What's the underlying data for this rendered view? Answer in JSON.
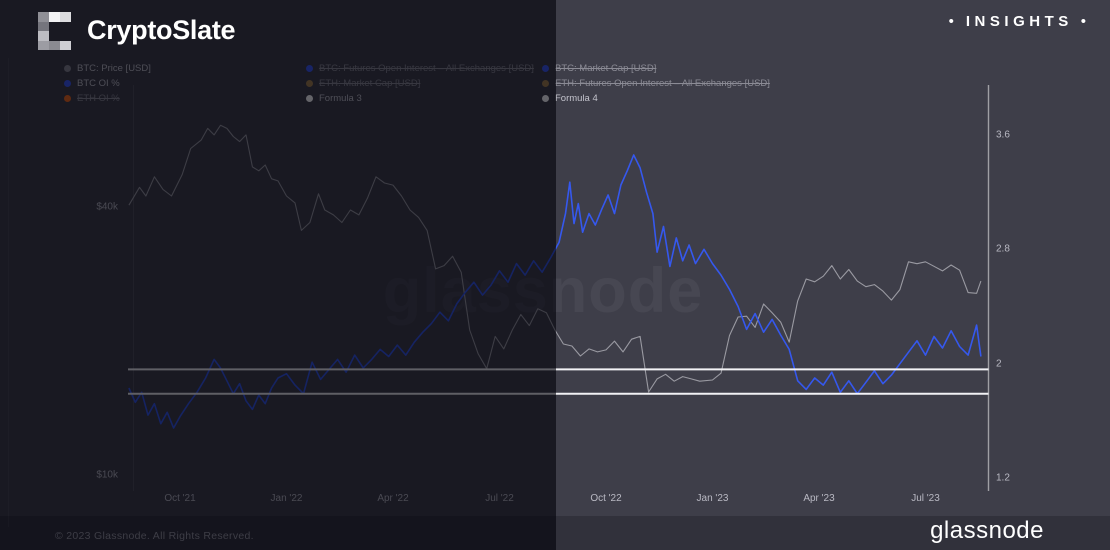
{
  "header": {
    "brand": "CryptoSlate",
    "insights_label": "INSIGHTS",
    "bullet": "•",
    "logo_pixels": [
      {
        "col": 0,
        "row": 0,
        "color": "#8f8f96"
      },
      {
        "col": 1,
        "row": 0,
        "color": "#f2f2f4"
      },
      {
        "col": 2,
        "row": 0,
        "color": "#dcdcdf"
      },
      {
        "col": 0,
        "row": 1,
        "color": "#75757d"
      },
      {
        "col": 0,
        "row": 2,
        "color": "#bcbcc2"
      },
      {
        "col": 0,
        "row": 3,
        "color": "#9c9ca3"
      },
      {
        "col": 1,
        "row": 3,
        "color": "#8a8a91"
      },
      {
        "col": 2,
        "row": 3,
        "color": "#cfcfd4"
      }
    ]
  },
  "watermark_text": "glassnode",
  "footer": {
    "copyright": "© 2023 Glassnode. All Rights Reserved.",
    "brand_wordmark": "glassnode"
  },
  "colors": {
    "background": "#3e3e49",
    "bottom_strip": "#31313b",
    "overlay": "rgba(2,2,10,0.61)",
    "btc_price_line": "#9a9aa2",
    "btc_oi_line": "#3558ee",
    "eth_oi": "#f26a1e",
    "gold": "#a8854f",
    "formula_line": "#f2f2f5",
    "axis_line": "rgba(255,255,255,0.5)",
    "axis_text": "#b9b9c3"
  },
  "chart_data": {
    "type": "line",
    "legend_columns": [
      {
        "items": [
          {
            "label": "BTC: Price [USD]",
            "color": "#8a8a93",
            "struck": false
          },
          {
            "label": "BTC OI %",
            "color": "#3b5af7",
            "struck": false
          },
          {
            "label": "ETH OI %",
            "color": "#f26a1e",
            "struck": true
          }
        ]
      },
      {
        "items": [
          {
            "label": "BTC: Futures Open Interest – All Exchanges [USD]",
            "color": "#3b5af7",
            "struck": true
          },
          {
            "label": "ETH: Market Cap [USD]",
            "color": "#a8854f",
            "struck": true
          },
          {
            "label": "Formula 3",
            "color": "#ffffff",
            "struck": false
          }
        ]
      },
      {
        "items": [
          {
            "label": "BTC: Market Cap [USD]",
            "color": "#3b5af7",
            "struck": true
          },
          {
            "label": "ETH: Futures Open Interest – All Exchanges [USD]",
            "color": "#a8854f",
            "struck": true
          },
          {
            "label": "Formula 4",
            "color": "#ffffff",
            "struck": false
          }
        ]
      }
    ],
    "x_ticks": [
      {
        "label": "Oct '21",
        "year": 2021.75
      },
      {
        "label": "Jan '22",
        "year": 2022.0
      },
      {
        "label": "Apr '22",
        "year": 2022.25
      },
      {
        "label": "Jul '22",
        "year": 2022.5
      },
      {
        "label": "Oct '22",
        "year": 2022.75
      },
      {
        "label": "Jan '23",
        "year": 2023.0
      },
      {
        "label": "Apr '23",
        "year": 2023.25
      },
      {
        "label": "Jul '23",
        "year": 2023.5
      }
    ],
    "y_left_axis": {
      "scale": "log",
      "unit": "USD",
      "ticks": [
        {
          "label": "$40k",
          "value": 40000
        },
        {
          "label": "$10k",
          "value": 10000
        }
      ]
    },
    "y_right_axis": {
      "min": 1.2,
      "max": 3.6,
      "ticks": [
        {
          "label": "3.6",
          "value": 3.6
        },
        {
          "label": "2.8",
          "value": 2.8
        },
        {
          "label": "2",
          "value": 2.0
        },
        {
          "label": "1.2",
          "value": 1.2
        }
      ]
    },
    "series": [
      {
        "name": "BTC: Price [USD]",
        "axis": "left",
        "color_key": "btc_price_line",
        "width": 1.1,
        "points": [
          [
            2021.63,
            41000
          ],
          [
            2021.655,
            45000
          ],
          [
            2021.67,
            43000
          ],
          [
            2021.69,
            47500
          ],
          [
            2021.71,
            44500
          ],
          [
            2021.73,
            43000
          ],
          [
            2021.755,
            48000
          ],
          [
            2021.775,
            55000
          ],
          [
            2021.8,
            57500
          ],
          [
            2021.815,
            61000
          ],
          [
            2021.83,
            59000
          ],
          [
            2021.845,
            62000
          ],
          [
            2021.86,
            61000
          ],
          [
            2021.875,
            58500
          ],
          [
            2021.89,
            57000
          ],
          [
            2021.905,
            59000
          ],
          [
            2021.92,
            50000
          ],
          [
            2021.935,
            49000
          ],
          [
            2021.95,
            50500
          ],
          [
            2021.965,
            47000
          ],
          [
            2021.98,
            46500
          ],
          [
            2022.0,
            43000
          ],
          [
            2022.02,
            41500
          ],
          [
            2022.035,
            36000
          ],
          [
            2022.055,
            37500
          ],
          [
            2022.075,
            43500
          ],
          [
            2022.09,
            40000
          ],
          [
            2022.11,
            39000
          ],
          [
            2022.13,
            37500
          ],
          [
            2022.15,
            40000
          ],
          [
            2022.17,
            39000
          ],
          [
            2022.19,
            42500
          ],
          [
            2022.21,
            47500
          ],
          [
            2022.23,
            46000
          ],
          [
            2022.25,
            45500
          ],
          [
            2022.27,
            43000
          ],
          [
            2022.29,
            40000
          ],
          [
            2022.31,
            38500
          ],
          [
            2022.33,
            36000
          ],
          [
            2022.35,
            29500
          ],
          [
            2022.37,
            30000
          ],
          [
            2022.39,
            31500
          ],
          [
            2022.41,
            29000
          ],
          [
            2022.43,
            21500
          ],
          [
            2022.45,
            19000
          ],
          [
            2022.47,
            17600
          ],
          [
            2022.49,
            20800
          ],
          [
            2022.51,
            19500
          ],
          [
            2022.53,
            21500
          ],
          [
            2022.55,
            23300
          ],
          [
            2022.57,
            22000
          ],
          [
            2022.59,
            24000
          ],
          [
            2022.61,
            23500
          ],
          [
            2022.63,
            21500
          ],
          [
            2022.65,
            20000
          ],
          [
            2022.67,
            19800
          ],
          [
            2022.69,
            18800
          ],
          [
            2022.71,
            19500
          ],
          [
            2022.73,
            19200
          ],
          [
            2022.75,
            19400
          ],
          [
            2022.77,
            20300
          ],
          [
            2022.79,
            19200
          ],
          [
            2022.81,
            20500
          ],
          [
            2022.83,
            20800
          ],
          [
            2022.85,
            15600
          ],
          [
            2022.87,
            16700
          ],
          [
            2022.89,
            17100
          ],
          [
            2022.91,
            16500
          ],
          [
            2022.93,
            16900
          ],
          [
            2022.95,
            16700
          ],
          [
            2022.97,
            16500
          ],
          [
            2023.0,
            16600
          ],
          [
            2023.02,
            17200
          ],
          [
            2023.04,
            20900
          ],
          [
            2023.06,
            23000
          ],
          [
            2023.08,
            23100
          ],
          [
            2023.1,
            21800
          ],
          [
            2023.12,
            24600
          ],
          [
            2023.14,
            23500
          ],
          [
            2023.16,
            22400
          ],
          [
            2023.18,
            20200
          ],
          [
            2023.2,
            25000
          ],
          [
            2023.22,
            28000
          ],
          [
            2023.24,
            27600
          ],
          [
            2023.26,
            28400
          ],
          [
            2023.28,
            30000
          ],
          [
            2023.3,
            28000
          ],
          [
            2023.32,
            29400
          ],
          [
            2023.34,
            27700
          ],
          [
            2023.36,
            26900
          ],
          [
            2023.38,
            27200
          ],
          [
            2023.4,
            26300
          ],
          [
            2023.42,
            25100
          ],
          [
            2023.44,
            26500
          ],
          [
            2023.46,
            30600
          ],
          [
            2023.48,
            30300
          ],
          [
            2023.5,
            30600
          ],
          [
            2023.52,
            29900
          ],
          [
            2023.54,
            29200
          ],
          [
            2023.56,
            30100
          ],
          [
            2023.58,
            29300
          ],
          [
            2023.6,
            26100
          ],
          [
            2023.62,
            26000
          ],
          [
            2023.63,
            27700
          ]
        ]
      },
      {
        "name": "BTC OI %",
        "axis": "right",
        "color_key": "btc_oi_line",
        "width": 1.6,
        "points": [
          [
            2021.63,
            1.83
          ],
          [
            2021.645,
            1.73
          ],
          [
            2021.66,
            1.8
          ],
          [
            2021.675,
            1.64
          ],
          [
            2021.69,
            1.72
          ],
          [
            2021.705,
            1.58
          ],
          [
            2021.72,
            1.66
          ],
          [
            2021.735,
            1.55
          ],
          [
            2021.75,
            1.63
          ],
          [
            2021.77,
            1.72
          ],
          [
            2021.79,
            1.8
          ],
          [
            2021.81,
            1.9
          ],
          [
            2021.83,
            2.03
          ],
          [
            2021.845,
            1.97
          ],
          [
            2021.86,
            1.88
          ],
          [
            2021.875,
            1.79
          ],
          [
            2021.89,
            1.86
          ],
          [
            2021.905,
            1.74
          ],
          [
            2021.92,
            1.68
          ],
          [
            2021.935,
            1.78
          ],
          [
            2021.95,
            1.72
          ],
          [
            2021.965,
            1.83
          ],
          [
            2021.98,
            1.9
          ],
          [
            2022.0,
            1.93
          ],
          [
            2022.02,
            1.85
          ],
          [
            2022.04,
            1.79
          ],
          [
            2022.06,
            2.01
          ],
          [
            2022.08,
            1.89
          ],
          [
            2022.1,
            1.96
          ],
          [
            2022.12,
            2.03
          ],
          [
            2022.14,
            1.94
          ],
          [
            2022.16,
            2.06
          ],
          [
            2022.18,
            1.97
          ],
          [
            2022.2,
            2.03
          ],
          [
            2022.22,
            2.1
          ],
          [
            2022.24,
            2.05
          ],
          [
            2022.26,
            2.13
          ],
          [
            2022.28,
            2.06
          ],
          [
            2022.3,
            2.15
          ],
          [
            2022.32,
            2.22
          ],
          [
            2022.34,
            2.28
          ],
          [
            2022.36,
            2.36
          ],
          [
            2022.38,
            2.3
          ],
          [
            2022.4,
            2.42
          ],
          [
            2022.42,
            2.5
          ],
          [
            2022.44,
            2.57
          ],
          [
            2022.46,
            2.48
          ],
          [
            2022.48,
            2.55
          ],
          [
            2022.5,
            2.65
          ],
          [
            2022.52,
            2.57
          ],
          [
            2022.54,
            2.7
          ],
          [
            2022.56,
            2.62
          ],
          [
            2022.58,
            2.72
          ],
          [
            2022.6,
            2.64
          ],
          [
            2022.62,
            2.74
          ],
          [
            2022.64,
            2.85
          ],
          [
            2022.655,
            3.05
          ],
          [
            2022.665,
            3.27
          ],
          [
            2022.675,
            2.98
          ],
          [
            2022.685,
            3.12
          ],
          [
            2022.695,
            2.92
          ],
          [
            2022.71,
            3.05
          ],
          [
            2022.725,
            2.97
          ],
          [
            2022.74,
            3.08
          ],
          [
            2022.755,
            3.18
          ],
          [
            2022.77,
            3.05
          ],
          [
            2022.785,
            3.25
          ],
          [
            2022.8,
            3.35
          ],
          [
            2022.815,
            3.46
          ],
          [
            2022.83,
            3.37
          ],
          [
            2022.845,
            3.2
          ],
          [
            2022.86,
            3.05
          ],
          [
            2022.87,
            2.78
          ],
          [
            2022.885,
            2.96
          ],
          [
            2022.9,
            2.68
          ],
          [
            2022.915,
            2.88
          ],
          [
            2022.93,
            2.72
          ],
          [
            2022.945,
            2.83
          ],
          [
            2022.96,
            2.7
          ],
          [
            2022.98,
            2.8
          ],
          [
            2023.0,
            2.7
          ],
          [
            2023.02,
            2.62
          ],
          [
            2023.04,
            2.52
          ],
          [
            2023.06,
            2.4
          ],
          [
            2023.08,
            2.24
          ],
          [
            2023.1,
            2.35
          ],
          [
            2023.12,
            2.22
          ],
          [
            2023.14,
            2.31
          ],
          [
            2023.16,
            2.2
          ],
          [
            2023.18,
            2.1
          ],
          [
            2023.2,
            1.88
          ],
          [
            2023.22,
            1.82
          ],
          [
            2023.24,
            1.9
          ],
          [
            2023.26,
            1.85
          ],
          [
            2023.28,
            1.94
          ],
          [
            2023.3,
            1.8
          ],
          [
            2023.32,
            1.88
          ],
          [
            2023.34,
            1.79
          ],
          [
            2023.36,
            1.87
          ],
          [
            2023.38,
            1.95
          ],
          [
            2023.4,
            1.86
          ],
          [
            2023.42,
            1.92
          ],
          [
            2023.44,
            2.0
          ],
          [
            2023.46,
            2.08
          ],
          [
            2023.48,
            2.16
          ],
          [
            2023.5,
            2.06
          ],
          [
            2023.52,
            2.19
          ],
          [
            2023.54,
            2.11
          ],
          [
            2023.56,
            2.23
          ],
          [
            2023.58,
            2.12
          ],
          [
            2023.6,
            2.06
          ],
          [
            2023.62,
            2.27
          ],
          [
            2023.63,
            2.05
          ]
        ]
      }
    ],
    "hlines": [
      {
        "name": "Formula 3",
        "value": 1.96
      },
      {
        "name": "Formula 4",
        "value": 1.79
      }
    ]
  }
}
